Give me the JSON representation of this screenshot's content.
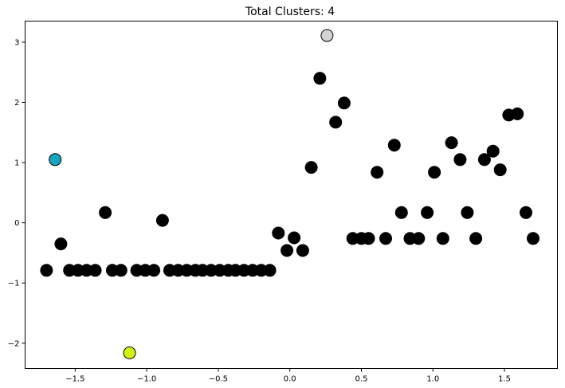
{
  "chart_data": {
    "type": "scatter",
    "title": "Total Clusters: 4",
    "xlabel": "",
    "ylabel": "",
    "xlim": [
      -1.85,
      1.87
    ],
    "ylim": [
      -2.42,
      3.35
    ],
    "xticks": [
      -1.5,
      -1.0,
      -0.5,
      0.0,
      0.5,
      1.0,
      1.5
    ],
    "xtick_labels": [
      "−1.5",
      "−1.0",
      "−0.5",
      "0.0",
      "0.5",
      "1.0",
      "1.5"
    ],
    "yticks": [
      -2,
      -1,
      0,
      1,
      2,
      3
    ],
    "ytick_labels": [
      "−2",
      "−1",
      "0",
      "1",
      "2",
      "3"
    ],
    "grid": false,
    "clusters": [
      {
        "color": "#000000",
        "points": [
          [
            -1.7,
            -0.79
          ],
          [
            -1.6,
            -0.35
          ],
          [
            -1.54,
            -0.79
          ],
          [
            -1.48,
            -0.79
          ],
          [
            -1.42,
            -0.79
          ],
          [
            -1.36,
            -0.79
          ],
          [
            -1.29,
            0.17
          ],
          [
            -1.24,
            -0.79
          ],
          [
            -1.18,
            -0.79
          ],
          [
            -1.07,
            -0.79
          ],
          [
            -1.01,
            -0.79
          ],
          [
            -0.95,
            -0.79
          ],
          [
            -0.89,
            0.04
          ],
          [
            -0.84,
            -0.79
          ],
          [
            -0.78,
            -0.79
          ],
          [
            -0.72,
            -0.79
          ],
          [
            -0.66,
            -0.79
          ],
          [
            -0.61,
            -0.79
          ],
          [
            -0.55,
            -0.79
          ],
          [
            -0.49,
            -0.79
          ],
          [
            -0.43,
            -0.79
          ],
          [
            -0.38,
            -0.79
          ],
          [
            -0.32,
            -0.79
          ],
          [
            -0.26,
            -0.79
          ],
          [
            -0.2,
            -0.79
          ],
          [
            -0.14,
            -0.79
          ],
          [
            -0.08,
            -0.17
          ],
          [
            -0.02,
            -0.46
          ],
          [
            0.03,
            -0.25
          ],
          [
            0.09,
            -0.46
          ],
          [
            0.15,
            0.92
          ],
          [
            0.21,
            2.4
          ],
          [
            0.32,
            1.67
          ],
          [
            0.38,
            1.99
          ],
          [
            0.44,
            -0.26
          ],
          [
            0.5,
            -0.26
          ],
          [
            0.55,
            -0.26
          ],
          [
            0.61,
            0.84
          ],
          [
            0.67,
            -0.26
          ],
          [
            0.73,
            1.29
          ],
          [
            0.78,
            0.17
          ],
          [
            0.84,
            -0.26
          ],
          [
            0.9,
            -0.26
          ],
          [
            0.96,
            0.17
          ],
          [
            1.01,
            0.84
          ],
          [
            1.07,
            -0.26
          ],
          [
            1.13,
            1.33
          ],
          [
            1.19,
            1.05
          ],
          [
            1.24,
            0.17
          ],
          [
            1.3,
            -0.26
          ],
          [
            1.36,
            1.05
          ],
          [
            1.42,
            1.19
          ],
          [
            1.47,
            0.88
          ],
          [
            1.53,
            1.79
          ],
          [
            1.59,
            1.81
          ],
          [
            1.65,
            0.17
          ],
          [
            1.7,
            -0.26
          ]
        ]
      },
      {
        "color": "#17a5bd",
        "points": [
          [
            -1.64,
            1.05
          ]
        ]
      },
      {
        "color": "#d3d3d3",
        "points": [
          [
            0.26,
            3.11
          ]
        ]
      },
      {
        "color": "#d4f20f",
        "points": [
          [
            -1.12,
            -2.16
          ]
        ]
      }
    ]
  }
}
